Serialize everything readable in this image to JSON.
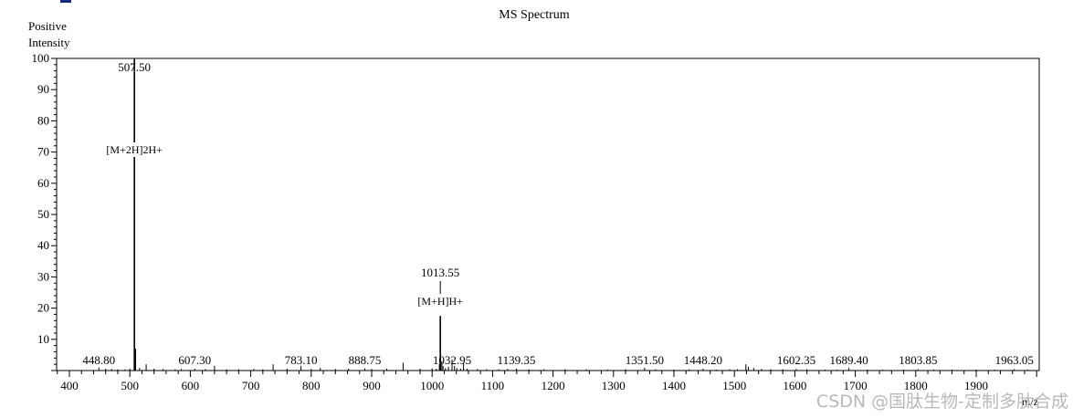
{
  "chart_data": {
    "type": "bar",
    "title": "MS Spectrum",
    "ylabel": [
      "Positive",
      "Intensity"
    ],
    "xlabel": "m/z",
    "xlim": [
      370,
      2010
    ],
    "ylim": [
      0,
      100
    ],
    "xticks": [
      400,
      500,
      600,
      700,
      800,
      900,
      1000,
      1100,
      1200,
      1300,
      1400,
      1500,
      1600,
      1700,
      1800,
      1900
    ],
    "yticks": [
      10,
      20,
      30,
      40,
      50,
      60,
      70,
      80,
      90,
      100
    ],
    "major_peaks": [
      {
        "x": 507.5,
        "y": 100,
        "label": "507.50",
        "annotation": "[M+2H]2H+"
      },
      {
        "x": 1013.55,
        "y": 17.5,
        "label": "1013.55",
        "annotation": "[M+H]H+"
      }
    ],
    "labeled_peaks": [
      {
        "x": 448.8,
        "y": 1.0,
        "label": "448.80"
      },
      {
        "x": 607.3,
        "y": 0.6,
        "label": "607.30"
      },
      {
        "x": 783.1,
        "y": 1.5,
        "label": "783.10"
      },
      {
        "x": 888.75,
        "y": 0.7,
        "label": "888.75"
      },
      {
        "x": 1032.95,
        "y": 3.5,
        "label": "1032.95"
      },
      {
        "x": 1139.35,
        "y": 0.6,
        "label": "1139.35"
      },
      {
        "x": 1351.5,
        "y": 0.9,
        "label": "1351.50"
      },
      {
        "x": 1448.2,
        "y": 0.6,
        "label": "1448.20"
      },
      {
        "x": 1602.35,
        "y": 0.5,
        "label": "1602.35"
      },
      {
        "x": 1689.4,
        "y": 0.8,
        "label": "1689.40"
      },
      {
        "x": 1803.85,
        "y": 0.4,
        "label": "1803.85"
      },
      {
        "x": 1963.05,
        "y": 0.4,
        "label": "1963.05"
      }
    ],
    "minor_peaks": [
      [
        460,
        0.6
      ],
      [
        470,
        0.5
      ],
      [
        480,
        0.4
      ],
      [
        492,
        0.4
      ],
      [
        500,
        0.6
      ],
      [
        509.5,
        7.0
      ],
      [
        516,
        0.8
      ],
      [
        527,
        2.0
      ],
      [
        540,
        0.6
      ],
      [
        555,
        0.5
      ],
      [
        575,
        0.4
      ],
      [
        585,
        0.5
      ],
      [
        625,
        0.5
      ],
      [
        640,
        1.5
      ],
      [
        660,
        0.4
      ],
      [
        680,
        0.4
      ],
      [
        705,
        0.5
      ],
      [
        720,
        0.4
      ],
      [
        737,
        2.0
      ],
      [
        760,
        0.6
      ],
      [
        800,
        0.5
      ],
      [
        815,
        0.8
      ],
      [
        840,
        0.5
      ],
      [
        862,
        0.6
      ],
      [
        900,
        0.5
      ],
      [
        925,
        0.6
      ],
      [
        952,
        2.5
      ],
      [
        980,
        0.6
      ],
      [
        1000,
        0.7
      ],
      [
        1007,
        0.6
      ],
      [
        1012,
        2.0
      ],
      [
        1016,
        3.0
      ],
      [
        1018,
        1.5
      ],
      [
        1022,
        0.8
      ],
      [
        1027,
        1.2
      ],
      [
        1037,
        1.5
      ],
      [
        1041,
        0.8
      ],
      [
        1047,
        0.6
      ],
      [
        1052,
        2.5
      ],
      [
        1058,
        0.6
      ],
      [
        1075,
        0.5
      ],
      [
        1090,
        0.4
      ],
      [
        1110,
        0.4
      ],
      [
        1125,
        0.5
      ],
      [
        1160,
        0.4
      ],
      [
        1185,
        0.4
      ],
      [
        1220,
        0.4
      ],
      [
        1255,
        0.4
      ],
      [
        1290,
        0.3
      ],
      [
        1320,
        0.4
      ],
      [
        1370,
        0.4
      ],
      [
        1400,
        0.3
      ],
      [
        1425,
        0.4
      ],
      [
        1470,
        0.3
      ],
      [
        1492,
        0.4
      ],
      [
        1505,
        0.4
      ],
      [
        1519,
        2.0
      ],
      [
        1523,
        1.2
      ],
      [
        1532,
        0.8
      ],
      [
        1545,
        0.5
      ],
      [
        1560,
        0.4
      ],
      [
        1580,
        0.4
      ],
      [
        1620,
        0.4
      ],
      [
        1650,
        0.3
      ],
      [
        1670,
        0.3
      ],
      [
        1720,
        0.3
      ],
      [
        1745,
        0.3
      ],
      [
        1780,
        0.3
      ],
      [
        1830,
        0.3
      ],
      [
        1860,
        0.3
      ],
      [
        1900,
        0.3
      ],
      [
        1930,
        0.3
      ],
      [
        1985,
        0.3
      ]
    ]
  },
  "watermark": "CSDN @国肽生物-定制多肽合成"
}
